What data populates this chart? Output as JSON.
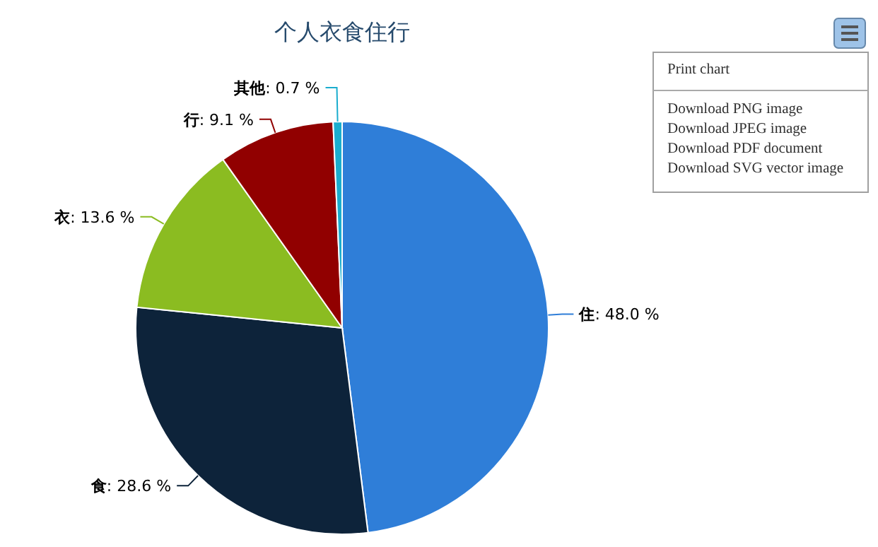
{
  "chart_data": {
    "type": "pie",
    "title": "个人衣食住行",
    "categories": [
      "住",
      "食",
      "衣",
      "行",
      "其他"
    ],
    "values": [
      48.0,
      28.6,
      13.6,
      9.1,
      0.7
    ],
    "value_labels": [
      ": 48.0 %",
      ": 28.6 %",
      ": 13.6 %",
      ": 9.1 %",
      ": 0.7 %"
    ],
    "colors": [
      "#2f7ed8",
      "#0d233a",
      "#8bbc21",
      "#910000",
      "#1aadce"
    ],
    "annotations": [
      "Print chart",
      "Download PNG image",
      "Download JPEG image",
      "Download PDF document",
      "Download SVG vector image"
    ]
  }
}
